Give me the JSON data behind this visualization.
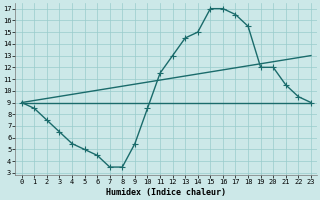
{
  "bg_color": "#cce8e8",
  "grid_color": "#99cccc",
  "line_color": "#1a6b6b",
  "line_width": 1.0,
  "marker": "+",
  "marker_size": 4,
  "xlim": [
    -0.5,
    23.5
  ],
  "ylim": [
    2.8,
    17.5
  ],
  "xticks": [
    0,
    1,
    2,
    3,
    4,
    5,
    6,
    7,
    8,
    9,
    10,
    11,
    12,
    13,
    14,
    15,
    16,
    17,
    18,
    19,
    20,
    21,
    22,
    23
  ],
  "yticks": [
    3,
    4,
    5,
    6,
    7,
    8,
    9,
    10,
    11,
    12,
    13,
    14,
    15,
    16,
    17
  ],
  "xlabel": "Humidex (Indice chaleur)",
  "curve_x": [
    0,
    1,
    2,
    3,
    4,
    5,
    6,
    7,
    8,
    9,
    10,
    11,
    12,
    13,
    14,
    15,
    16,
    17,
    18,
    19,
    20,
    21,
    22,
    23
  ],
  "curve_y": [
    9.0,
    8.5,
    7.5,
    6.5,
    5.5,
    5.0,
    4.5,
    3.5,
    3.5,
    5.5,
    8.5,
    11.5,
    13.0,
    14.5,
    15.0,
    17.0,
    17.0,
    16.5,
    15.5,
    12.0,
    12.0,
    10.5,
    9.5,
    9.0
  ],
  "trend1_x": [
    0,
    23
  ],
  "trend1_y": [
    9.0,
    13.0
  ],
  "trend2_x": [
    0,
    23
  ],
  "trend2_y": [
    9.0,
    9.0
  ]
}
